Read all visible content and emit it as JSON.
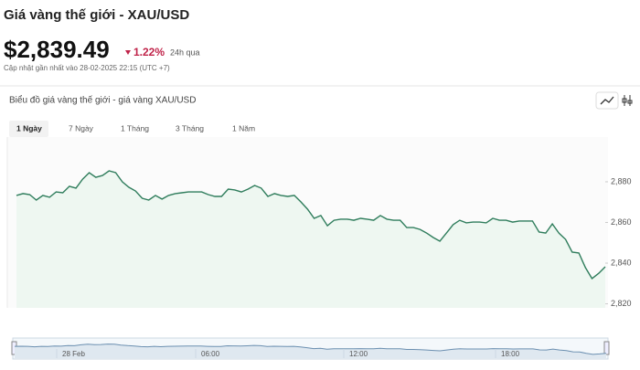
{
  "header": {
    "title": "Giá vàng thế giới - XAU/USD",
    "price": "$2,839.49",
    "change": "1.22%",
    "period": "24h qua",
    "updated": "Cập nhật gần nhất vào 28-02-2025 22:15 (UTC +7)"
  },
  "card": {
    "title": "Biểu đồ giá vàng thế giới - giá vàng XAU/USD",
    "tabs": [
      "1 Ngày",
      "7 Ngày",
      "1 Tháng",
      "3 Tháng",
      "1 Năm"
    ],
    "navigator_labels": [
      "28 Feb",
      "06:00",
      "12:00",
      "18:00"
    ]
  },
  "chart_data": {
    "type": "area",
    "color": "#2f7d5c",
    "fill": "#eef7f1",
    "values": [
      2873.3,
      2874.2,
      2873.7,
      2871,
      2873.3,
      2872.4,
      2875,
      2874.6,
      2877.8,
      2876.9,
      2881.3,
      2884.5,
      2882.2,
      2883.1,
      2885.4,
      2884.5,
      2880,
      2877.3,
      2875.5,
      2871.9,
      2871,
      2873.3,
      2871.5,
      2873.3,
      2874.2,
      2874.6,
      2875,
      2875,
      2875,
      2873.7,
      2872.8,
      2872.8,
      2876.4,
      2876,
      2875,
      2876.4,
      2878.2,
      2876.9,
      2872.8,
      2874.2,
      2873.3,
      2872.8,
      2873.3,
      2870.1,
      2866.5,
      2862,
      2863.4,
      2858.4,
      2861.1,
      2861.6,
      2861.6,
      2861.1,
      2862,
      2861.6,
      2861.1,
      2863.4,
      2861.6,
      2861.1,
      2861.1,
      2857.5,
      2857.5,
      2856.6,
      2854.8,
      2852.6,
      2850.8,
      2854.8,
      2858.9,
      2861.1,
      2859.8,
      2860.2,
      2860.2,
      2859.8,
      2862,
      2861.1,
      2861.1,
      2860.2,
      2860.7,
      2860.7,
      2860.7,
      2855.3,
      2854.8,
      2859.3,
      2854.8,
      2851.7,
      2845.4,
      2845,
      2837.8,
      2832.4,
      2835,
      2838.2
    ],
    "ylim": [
      2818,
      2902
    ],
    "yticks": [
      {
        "value": 2820,
        "label": "2,820"
      },
      {
        "value": 2840,
        "label": "2,840"
      },
      {
        "value": 2860,
        "label": "2,860"
      },
      {
        "value": 2880,
        "label": "2,880"
      }
    ]
  }
}
